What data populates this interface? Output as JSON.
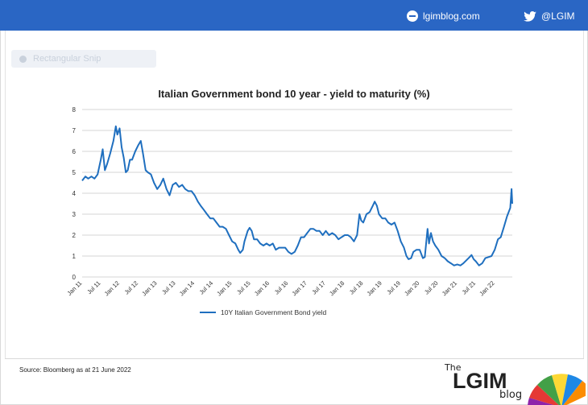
{
  "header": {
    "site_label": "lgimblog.com",
    "site_icon": "globe-icon",
    "twitter_label": "@LGIM",
    "twitter_icon": "twitter-bird-icon",
    "bar_color": "#2a66c4"
  },
  "ghost_control": {
    "label": "Rectangular Snip"
  },
  "footer": {
    "source": "Source: Bloomberg as at 21 June 2022",
    "logo_the": "The",
    "logo_main": "LGIM",
    "logo_blog": "blog"
  },
  "chart_data": {
    "type": "line",
    "title": "Italian Government bond 10 year - yield to maturity (%)",
    "xlabel": "",
    "ylabel": "",
    "ylim": [
      0,
      8
    ],
    "yticks": [
      0,
      1,
      2,
      3,
      4,
      5,
      6,
      7,
      8
    ],
    "xlim": [
      "2011-01-01",
      "2022-06-21"
    ],
    "x_ticks": [
      "Jan 11",
      "Jul 11",
      "Jan 12",
      "Jul 12",
      "Jan 13",
      "Jul 13",
      "Jan 14",
      "Jul 14",
      "Jan 15",
      "Jul 15",
      "Jan 16",
      "Jul 16",
      "Jan 17",
      "Jul 17",
      "Jan 18",
      "Jul 18",
      "Jan 19",
      "Jul 19",
      "Jan 20",
      "Jul 20",
      "Jan 21",
      "Jul 21",
      "Jan 22"
    ],
    "grid": true,
    "legend": "bottom",
    "color": "#1f6fbf",
    "series": [
      {
        "name": "10Y Italian Government Bond yield",
        "points": [
          [
            "2011-01-01",
            4.6
          ],
          [
            "2011-02-01",
            4.8
          ],
          [
            "2011-03-01",
            4.7
          ],
          [
            "2011-04-01",
            4.8
          ],
          [
            "2011-05-01",
            4.7
          ],
          [
            "2011-06-01",
            4.9
          ],
          [
            "2011-07-01",
            5.6
          ],
          [
            "2011-07-20",
            6.1
          ],
          [
            "2011-08-10",
            5.1
          ],
          [
            "2011-09-01",
            5.4
          ],
          [
            "2011-10-01",
            5.9
          ],
          [
            "2011-11-01",
            6.5
          ],
          [
            "2011-11-25",
            7.2
          ],
          [
            "2011-12-10",
            6.8
          ],
          [
            "2012-01-01",
            7.1
          ],
          [
            "2012-01-20",
            6.2
          ],
          [
            "2012-02-10",
            5.7
          ],
          [
            "2012-03-01",
            5.0
          ],
          [
            "2012-03-20",
            5.1
          ],
          [
            "2012-04-10",
            5.6
          ],
          [
            "2012-05-01",
            5.6
          ],
          [
            "2012-06-01",
            6.0
          ],
          [
            "2012-07-01",
            6.3
          ],
          [
            "2012-07-25",
            6.5
          ],
          [
            "2012-08-15",
            5.9
          ],
          [
            "2012-09-10",
            5.1
          ],
          [
            "2012-10-01",
            5.0
          ],
          [
            "2012-11-01",
            4.9
          ],
          [
            "2012-12-01",
            4.5
          ],
          [
            "2013-01-01",
            4.2
          ],
          [
            "2013-02-01",
            4.4
          ],
          [
            "2013-03-01",
            4.7
          ],
          [
            "2013-04-01",
            4.2
          ],
          [
            "2013-05-01",
            3.9
          ],
          [
            "2013-06-01",
            4.4
          ],
          [
            "2013-07-01",
            4.5
          ],
          [
            "2013-08-01",
            4.3
          ],
          [
            "2013-09-01",
            4.4
          ],
          [
            "2013-10-01",
            4.2
          ],
          [
            "2013-11-01",
            4.1
          ],
          [
            "2013-12-01",
            4.1
          ],
          [
            "2014-01-01",
            3.9
          ],
          [
            "2014-02-01",
            3.6
          ],
          [
            "2014-03-01",
            3.4
          ],
          [
            "2014-04-01",
            3.2
          ],
          [
            "2014-05-01",
            3.0
          ],
          [
            "2014-06-01",
            2.8
          ],
          [
            "2014-07-01",
            2.8
          ],
          [
            "2014-08-01",
            2.6
          ],
          [
            "2014-09-01",
            2.4
          ],
          [
            "2014-10-01",
            2.4
          ],
          [
            "2014-11-01",
            2.3
          ],
          [
            "2014-12-01",
            2.0
          ],
          [
            "2015-01-01",
            1.7
          ],
          [
            "2015-02-01",
            1.6
          ],
          [
            "2015-03-01",
            1.3
          ],
          [
            "2015-03-20",
            1.15
          ],
          [
            "2015-04-15",
            1.3
          ],
          [
            "2015-05-01",
            1.7
          ],
          [
            "2015-06-01",
            2.2
          ],
          [
            "2015-06-20",
            2.35
          ],
          [
            "2015-07-10",
            2.2
          ],
          [
            "2015-08-01",
            1.8
          ],
          [
            "2015-09-01",
            1.8
          ],
          [
            "2015-10-01",
            1.6
          ],
          [
            "2015-11-01",
            1.5
          ],
          [
            "2015-12-01",
            1.6
          ],
          [
            "2016-01-01",
            1.5
          ],
          [
            "2016-02-01",
            1.6
          ],
          [
            "2016-03-01",
            1.3
          ],
          [
            "2016-04-01",
            1.4
          ],
          [
            "2016-05-01",
            1.4
          ],
          [
            "2016-06-01",
            1.4
          ],
          [
            "2016-07-01",
            1.2
          ],
          [
            "2016-08-01",
            1.1
          ],
          [
            "2016-09-01",
            1.2
          ],
          [
            "2016-10-01",
            1.5
          ],
          [
            "2016-11-01",
            1.9
          ],
          [
            "2016-12-01",
            1.9
          ],
          [
            "2017-01-01",
            2.1
          ],
          [
            "2017-02-01",
            2.3
          ],
          [
            "2017-03-01",
            2.3
          ],
          [
            "2017-04-01",
            2.2
          ],
          [
            "2017-05-01",
            2.2
          ],
          [
            "2017-06-01",
            2.0
          ],
          [
            "2017-07-01",
            2.2
          ],
          [
            "2017-08-01",
            2.0
          ],
          [
            "2017-09-01",
            2.1
          ],
          [
            "2017-10-01",
            2.0
          ],
          [
            "2017-11-01",
            1.8
          ],
          [
            "2017-12-01",
            1.9
          ],
          [
            "2018-01-01",
            2.0
          ],
          [
            "2018-02-01",
            2.0
          ],
          [
            "2018-03-01",
            1.9
          ],
          [
            "2018-04-01",
            1.7
          ],
          [
            "2018-05-01",
            2.0
          ],
          [
            "2018-05-25",
            3.0
          ],
          [
            "2018-06-10",
            2.7
          ],
          [
            "2018-07-01",
            2.6
          ],
          [
            "2018-08-01",
            3.0
          ],
          [
            "2018-09-01",
            3.1
          ],
          [
            "2018-10-01",
            3.4
          ],
          [
            "2018-10-20",
            3.6
          ],
          [
            "2018-11-10",
            3.4
          ],
          [
            "2018-12-01",
            3.0
          ],
          [
            "2019-01-01",
            2.8
          ],
          [
            "2019-02-01",
            2.8
          ],
          [
            "2019-03-01",
            2.6
          ],
          [
            "2019-04-01",
            2.5
          ],
          [
            "2019-05-01",
            2.6
          ],
          [
            "2019-06-01",
            2.2
          ],
          [
            "2019-07-01",
            1.7
          ],
          [
            "2019-08-01",
            1.4
          ],
          [
            "2019-08-25",
            1.0
          ],
          [
            "2019-09-15",
            0.85
          ],
          [
            "2019-10-10",
            0.9
          ],
          [
            "2019-11-01",
            1.2
          ],
          [
            "2019-12-01",
            1.3
          ],
          [
            "2020-01-01",
            1.3
          ],
          [
            "2020-02-01",
            0.9
          ],
          [
            "2020-02-20",
            0.95
          ],
          [
            "2020-03-18",
            2.3
          ],
          [
            "2020-04-01",
            1.6
          ],
          [
            "2020-04-20",
            2.1
          ],
          [
            "2020-05-10",
            1.7
          ],
          [
            "2020-06-01",
            1.5
          ],
          [
            "2020-07-01",
            1.3
          ],
          [
            "2020-08-01",
            1.0
          ],
          [
            "2020-09-01",
            0.9
          ],
          [
            "2020-10-01",
            0.75
          ],
          [
            "2020-11-01",
            0.65
          ],
          [
            "2020-12-01",
            0.55
          ],
          [
            "2021-01-01",
            0.6
          ],
          [
            "2021-02-01",
            0.55
          ],
          [
            "2021-03-01",
            0.65
          ],
          [
            "2021-04-01",
            0.8
          ],
          [
            "2021-05-01",
            0.95
          ],
          [
            "2021-05-20",
            1.05
          ],
          [
            "2021-06-10",
            0.85
          ],
          [
            "2021-07-01",
            0.75
          ],
          [
            "2021-08-01",
            0.55
          ],
          [
            "2021-09-01",
            0.65
          ],
          [
            "2021-10-01",
            0.9
          ],
          [
            "2021-11-01",
            0.95
          ],
          [
            "2021-12-01",
            1.0
          ],
          [
            "2022-01-01",
            1.3
          ],
          [
            "2022-02-01",
            1.8
          ],
          [
            "2022-03-01",
            1.9
          ],
          [
            "2022-04-01",
            2.4
          ],
          [
            "2022-05-01",
            2.9
          ],
          [
            "2022-06-01",
            3.3
          ],
          [
            "2022-06-14",
            4.2
          ],
          [
            "2022-06-21",
            3.5
          ]
        ]
      }
    ]
  }
}
